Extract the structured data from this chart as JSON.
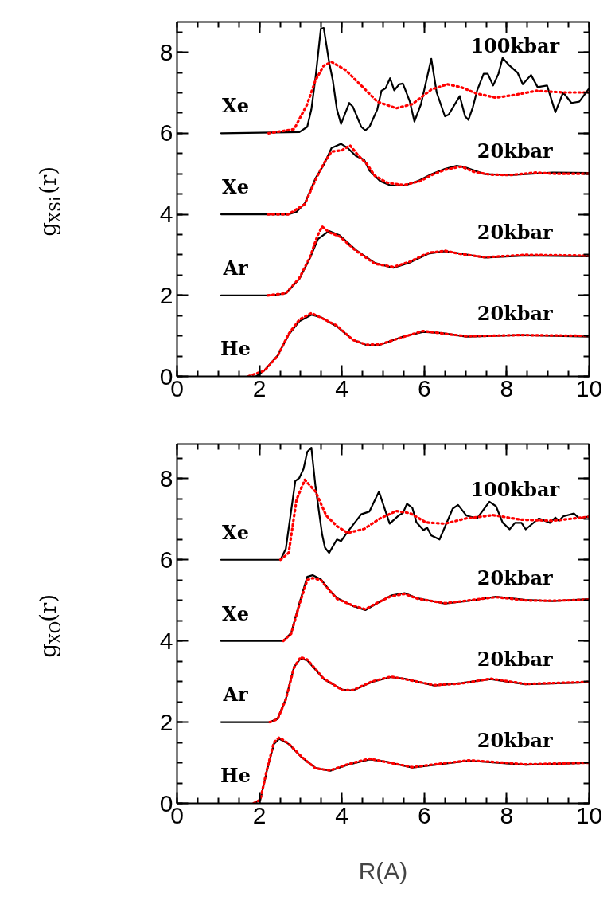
{
  "chart_data": [
    {
      "type": "line",
      "ylabel": "g$_{XSi}$(r)",
      "xlim": [
        0,
        10
      ],
      "xticks": [
        0,
        2,
        4,
        6,
        8,
        10
      ],
      "ylim": [
        0,
        8.75
      ],
      "yticks": [
        0,
        2,
        4,
        6,
        8
      ],
      "series": [
        {
          "color": "#000000",
          "line_style": "solid",
          "x": [
            1.07,
            2.97,
            3.16,
            3.26,
            3.36,
            3.49,
            3.56,
            3.69,
            3.78,
            3.88,
            3.98,
            4.18,
            4.27,
            4.47,
            4.57,
            4.67,
            4.86,
            4.96,
            5.06,
            5.17,
            5.27,
            5.39,
            5.48,
            5.65,
            5.76,
            5.92,
            6.17,
            6.3,
            6.5,
            6.59,
            6.86,
            6.99,
            7.07,
            7.18,
            7.28,
            7.44,
            7.54,
            7.67,
            7.8,
            7.9,
            8.07,
            8.26,
            8.39,
            8.59,
            8.75,
            8.98,
            9.18,
            9.37,
            9.57,
            9.76,
            10
          ],
          "values": [
            6.0,
            6.03,
            6.16,
            6.59,
            7.37,
            8.58,
            8.6,
            7.76,
            7.31,
            6.59,
            6.23,
            6.75,
            6.65,
            6.16,
            6.07,
            6.16,
            6.59,
            7.05,
            7.11,
            7.36,
            7.06,
            7.21,
            7.23,
            6.78,
            6.29,
            6.72,
            7.84,
            7.01,
            6.42,
            6.46,
            6.92,
            6.42,
            6.33,
            6.65,
            7.05,
            7.47,
            7.47,
            7.18,
            7.47,
            7.86,
            7.67,
            7.5,
            7.21,
            7.44,
            7.14,
            7.18,
            6.52,
            7.01,
            6.75,
            6.78,
            7.11
          ]
        },
        {
          "color": "#ff0000",
          "line_style": "dotted",
          "x": [
            2.22,
            2.84,
            3.16,
            3.36,
            3.56,
            3.75,
            4.08,
            4.47,
            4.86,
            5.32,
            5.71,
            6.17,
            6.56,
            6.89,
            7.28,
            7.74,
            8.2,
            8.72,
            9.37,
            10
          ],
          "values": [
            6.0,
            6.1,
            6.72,
            7.31,
            7.67,
            7.76,
            7.57,
            7.18,
            6.78,
            6.62,
            6.72,
            7.08,
            7.21,
            7.14,
            6.98,
            6.88,
            6.95,
            7.05,
            7.01,
            7.01
          ]
        },
        {
          "color": "#000000",
          "line_style": "solid",
          "x": [
            1.07,
            2.7,
            2.9,
            3.1,
            3.36,
            3.56,
            3.75,
            3.98,
            4.14,
            4.34,
            4.54,
            4.67,
            4.93,
            5.19,
            5.52,
            5.84,
            6.17,
            6.5,
            6.79,
            7.02,
            7.48,
            8.13,
            9.11,
            10
          ],
          "values": [
            4.0,
            4.0,
            4.06,
            4.27,
            4.89,
            5.22,
            5.64,
            5.74,
            5.64,
            5.44,
            5.35,
            5.08,
            4.82,
            4.71,
            4.71,
            4.82,
            4.99,
            5.12,
            5.2,
            5.15,
            4.99,
            4.97,
            5.03,
            5.02
          ]
        },
        {
          "color": "#ff0000",
          "line_style": "dotted",
          "x": [
            2.2,
            2.7,
            3.1,
            3.36,
            3.56,
            3.75,
            4.0,
            4.2,
            4.4,
            4.6,
            4.8,
            5.1,
            5.5,
            5.9,
            6.2,
            6.5,
            6.9,
            7.2,
            7.6,
            8.1,
            8.7,
            9.2,
            10
          ],
          "values": [
            4.0,
            4.0,
            4.25,
            4.85,
            5.25,
            5.55,
            5.58,
            5.7,
            5.45,
            5.25,
            4.95,
            4.78,
            4.72,
            4.82,
            4.98,
            5.1,
            5.18,
            5.05,
            4.98,
            4.97,
            5.03,
            5.0,
            5.0
          ]
        },
        {
          "color": "#000000",
          "line_style": "solid",
          "x": [
            1.07,
            2.31,
            2.64,
            2.97,
            3.23,
            3.42,
            3.69,
            3.95,
            4.34,
            4.8,
            5.25,
            5.65,
            6.1,
            6.5,
            6.89,
            7.48,
            8.46,
            10
          ],
          "values": [
            2.0,
            2.0,
            2.05,
            2.41,
            2.93,
            3.39,
            3.59,
            3.48,
            3.12,
            2.8,
            2.68,
            2.81,
            3.03,
            3.09,
            3.03,
            2.93,
            2.98,
            2.96
          ]
        },
        {
          "color": "#ff0000",
          "line_style": "dotted",
          "x": [
            2.2,
            2.64,
            2.97,
            3.23,
            3.4,
            3.52,
            3.7,
            3.95,
            4.34,
            4.8,
            5.25,
            5.65,
            6.1,
            6.5,
            6.89,
            7.48,
            8.46,
            10
          ],
          "values": [
            2.0,
            2.05,
            2.43,
            2.95,
            3.45,
            3.7,
            3.55,
            3.45,
            3.1,
            2.78,
            2.7,
            2.83,
            3.05,
            3.1,
            3.02,
            2.94,
            3.0,
            2.98
          ]
        },
        {
          "color": "#000000",
          "line_style": "solid",
          "x": [
            1.92,
            2.12,
            2.44,
            2.71,
            2.97,
            3.26,
            3.49,
            3.88,
            4.27,
            4.6,
            4.93,
            5.45,
            5.97,
            6.43,
            7.02,
            8.33,
            10
          ],
          "values": [
            0.0,
            0.15,
            0.51,
            1.03,
            1.36,
            1.52,
            1.46,
            1.23,
            0.9,
            0.77,
            0.78,
            0.97,
            1.1,
            1.07,
            0.98,
            1.02,
            0.98
          ]
        },
        {
          "color": "#ff0000",
          "line_style": "dotted",
          "x": [
            1.73,
            2.12,
            2.44,
            2.71,
            2.97,
            3.26,
            3.49,
            3.88,
            4.27,
            4.6,
            4.93,
            5.45,
            5.97,
            6.43,
            7.02,
            8.33,
            10
          ],
          "values": [
            0.0,
            0.14,
            0.5,
            1.05,
            1.4,
            1.56,
            1.45,
            1.25,
            0.9,
            0.78,
            0.79,
            0.96,
            1.12,
            1.06,
            0.99,
            1.02,
            1.0
          ]
        }
      ],
      "annotations": [
        "100kbar",
        "Xe",
        "20kbar",
        "Xe",
        "20kbar",
        "Ar",
        "20kbar",
        "He"
      ]
    },
    {
      "type": "line",
      "ylabel": "g$_{XO}$(r)",
      "xlabel": "R(A)",
      "xlim": [
        0,
        10
      ],
      "xticks": [
        0,
        2,
        4,
        6,
        8,
        10
      ],
      "ylim": [
        0,
        8.85
      ],
      "yticks": [
        0,
        2,
        4,
        6,
        8
      ],
      "series": [
        {
          "color": "#000000",
          "line_style": "solid",
          "x": [
            1.07,
            2.51,
            2.64,
            2.87,
            2.97,
            3.07,
            3.16,
            3.26,
            3.36,
            3.52,
            3.59,
            3.69,
            3.88,
            3.98,
            4.14,
            4.47,
            4.67,
            4.9,
            5.16,
            5.39,
            5.48,
            5.58,
            5.71,
            5.81,
            5.98,
            6.07,
            6.17,
            6.37,
            6.69,
            6.82,
            7.02,
            7.28,
            7.58,
            7.74,
            7.9,
            8.07,
            8.2,
            8.36,
            8.46,
            8.78,
            9.05,
            9.18,
            9.27,
            9.37,
            9.63,
            9.76,
            10
          ],
          "values": [
            6.0,
            6.0,
            6.27,
            7.94,
            8.02,
            8.24,
            8.66,
            8.76,
            7.81,
            6.63,
            6.3,
            6.17,
            6.5,
            6.46,
            6.69,
            7.12,
            7.19,
            7.68,
            6.89,
            7.1,
            7.15,
            7.38,
            7.28,
            6.92,
            6.73,
            6.79,
            6.6,
            6.5,
            7.26,
            7.35,
            7.09,
            7.02,
            7.43,
            7.32,
            6.92,
            6.75,
            6.91,
            6.91,
            6.75,
            7.02,
            6.91,
            7.04,
            6.96,
            7.07,
            7.14,
            7.02,
            7.07
          ]
        },
        {
          "color": "#ff0000",
          "line_style": "dotted",
          "x": [
            2.51,
            2.71,
            2.9,
            3.1,
            3.36,
            3.62,
            3.88,
            4.14,
            4.54,
            4.93,
            5.32,
            5.65,
            6.04,
            6.5,
            7.02,
            7.67,
            8.33,
            9.11,
            10
          ],
          "values": [
            6.0,
            6.17,
            7.48,
            7.97,
            7.68,
            7.09,
            6.83,
            6.66,
            6.76,
            7.02,
            7.2,
            7.15,
            6.92,
            6.89,
            7.02,
            7.1,
            6.99,
            6.96,
            7.06
          ]
        },
        {
          "color": "#000000",
          "line_style": "solid",
          "x": [
            1.07,
            2.58,
            2.77,
            2.97,
            3.16,
            3.29,
            3.49,
            3.69,
            3.88,
            4.27,
            4.57,
            4.86,
            5.19,
            5.52,
            5.84,
            6.5,
            7.02,
            7.74,
            8.46,
            9.11,
            10
          ],
          "values": [
            4.0,
            4.0,
            4.2,
            4.93,
            5.58,
            5.62,
            5.52,
            5.26,
            5.06,
            4.86,
            4.76,
            4.93,
            5.12,
            5.18,
            5.05,
            4.92,
            4.98,
            5.09,
            5.01,
            4.98,
            5.03
          ]
        },
        {
          "color": "#ff0000",
          "line_style": "dotted",
          "x": [
            2.58,
            2.77,
            2.97,
            3.16,
            3.29,
            3.49,
            3.69,
            3.88,
            4.27,
            4.57,
            4.86,
            5.19,
            5.52,
            5.84,
            6.5,
            7.02,
            7.74,
            8.46,
            9.11,
            10
          ],
          "values": [
            4.0,
            4.18,
            4.9,
            5.5,
            5.55,
            5.5,
            5.25,
            5.04,
            4.87,
            4.78,
            4.94,
            5.1,
            5.16,
            5.04,
            4.93,
            4.99,
            5.08,
            5.0,
            4.99,
            5.02
          ]
        },
        {
          "color": "#000000",
          "line_style": "solid",
          "x": [
            1.07,
            2.25,
            2.44,
            2.64,
            2.84,
            3.0,
            3.16,
            3.56,
            4.01,
            4.27,
            4.73,
            5.19,
            5.52,
            6.24,
            6.89,
            7.61,
            8.46,
            10
          ],
          "values": [
            2.0,
            2.0,
            2.08,
            2.57,
            3.36,
            3.57,
            3.52,
            3.06,
            2.8,
            2.78,
            2.99,
            3.11,
            3.07,
            2.9,
            2.96,
            3.06,
            2.93,
            2.98
          ]
        },
        {
          "color": "#ff0000",
          "line_style": "dotted",
          "x": [
            2.25,
            2.44,
            2.64,
            2.84,
            3.0,
            3.16,
            3.56,
            4.01,
            4.27,
            4.73,
            5.19,
            5.52,
            6.24,
            6.89,
            7.61,
            8.46,
            10
          ],
          "values": [
            2.0,
            2.07,
            2.56,
            3.35,
            3.6,
            3.54,
            3.07,
            2.79,
            2.79,
            3.0,
            3.12,
            3.06,
            2.91,
            2.95,
            3.07,
            2.94,
            2.99
          ]
        },
        {
          "color": "#000000",
          "line_style": "solid",
          "x": [
            1.86,
            2.02,
            2.18,
            2.35,
            2.48,
            2.71,
            3.03,
            3.36,
            3.72,
            4.14,
            4.67,
            5.06,
            5.71,
            6.43,
            7.08,
            7.8,
            8.46,
            10
          ],
          "values": [
            0.0,
            0.08,
            0.8,
            1.46,
            1.59,
            1.46,
            1.13,
            0.87,
            0.8,
            0.95,
            1.08,
            1.03,
            0.88,
            0.97,
            1.05,
            1.0,
            0.95,
            1.0
          ]
        },
        {
          "color": "#ff0000",
          "line_style": "dotted",
          "x": [
            1.86,
            2.02,
            2.18,
            2.35,
            2.48,
            2.71,
            3.03,
            3.36,
            3.72,
            4.14,
            4.67,
            5.06,
            5.71,
            6.43,
            7.08,
            7.8,
            8.46,
            10
          ],
          "values": [
            0.0,
            0.09,
            0.82,
            1.5,
            1.62,
            1.47,
            1.14,
            0.86,
            0.81,
            0.96,
            1.1,
            1.02,
            0.89,
            0.98,
            1.06,
            1.01,
            0.96,
            1.0
          ]
        }
      ],
      "annotations": [
        "100kbar",
        "Xe",
        "20kbar",
        "Xe",
        "20kbar",
        "Ar",
        "20kbar",
        "He"
      ]
    }
  ]
}
